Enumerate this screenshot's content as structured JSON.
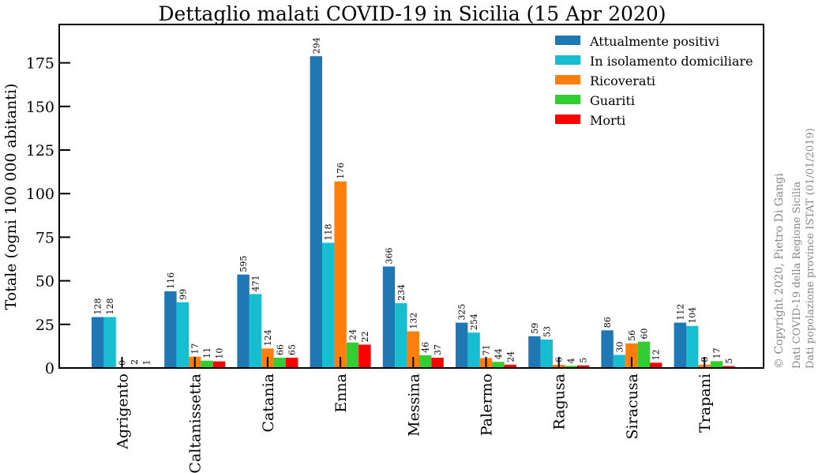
{
  "chart_data": {
    "type": "bar",
    "title": "Dettaglio malati COVID-19 in Sicilia (15 Apr 2020)",
    "xlabel": "",
    "ylabel": "Totale (ogni 100 000 abitanti)",
    "ylim": [
      0,
      197
    ],
    "yticks": [
      "0",
      "25",
      "50",
      "75",
      "100",
      "125",
      "150",
      "175"
    ],
    "legend_position": "top-right",
    "grid": false,
    "categories": [
      "Agrigento",
      "Caltanissetta",
      "Catania",
      "Enna",
      "Messina",
      "Palermo",
      "Ragusa",
      "Siracusa",
      "Trapani"
    ],
    "series": [
      {
        "name": "Attualmente positivi",
        "color": "#1f77b4",
        "values": [
          29.2,
          44.0,
          53.6,
          178.8,
          58.2,
          26.0,
          18.2,
          21.6,
          26.0
        ],
        "labels": [
          "128",
          "116",
          "595",
          "294",
          "366",
          "325",
          "59",
          "86",
          "112"
        ]
      },
      {
        "name": "In isolamento domiciliare",
        "color": "#17becf",
        "values": [
          29.2,
          37.7,
          42.4,
          71.8,
          37.2,
          20.3,
          16.3,
          7.5,
          24.1
        ],
        "labels": [
          "128",
          "99",
          "471",
          "118",
          "234",
          "254",
          "53",
          "30",
          "104"
        ]
      },
      {
        "name": "Ricoverati",
        "color": "#ff7f0e",
        "values": [
          0.0,
          6.5,
          11.2,
          107.0,
          21.0,
          5.7,
          1.8,
          14.1,
          1.9
        ],
        "labels": [
          "0",
          "17",
          "124",
          "176",
          "132",
          "71",
          "6",
          "56",
          "8"
        ]
      },
      {
        "name": "Guariti",
        "color": "#32cd32",
        "values": [
          0.5,
          4.2,
          5.9,
          14.6,
          7.3,
          3.5,
          1.2,
          15.1,
          3.9
        ],
        "labels": [
          "2",
          "11",
          "66",
          "24",
          "46",
          "44",
          "4",
          "60",
          "17"
        ]
      },
      {
        "name": "Morti",
        "color": "#ff0000",
        "values": [
          0.2,
          3.8,
          5.9,
          13.4,
          5.9,
          1.9,
          1.5,
          3.0,
          1.1
        ],
        "labels": [
          "1",
          "10",
          "65",
          "22",
          "37",
          "24",
          "5",
          "12",
          "5"
        ]
      }
    ]
  },
  "credits": {
    "copyright": "© Copyright 2020, Pietro Di Gangi",
    "source_covid": "Dati COVID-19 della Regione Sicilia",
    "source_population": "Dati popolazione province ISTAT (01/01/2019)"
  }
}
